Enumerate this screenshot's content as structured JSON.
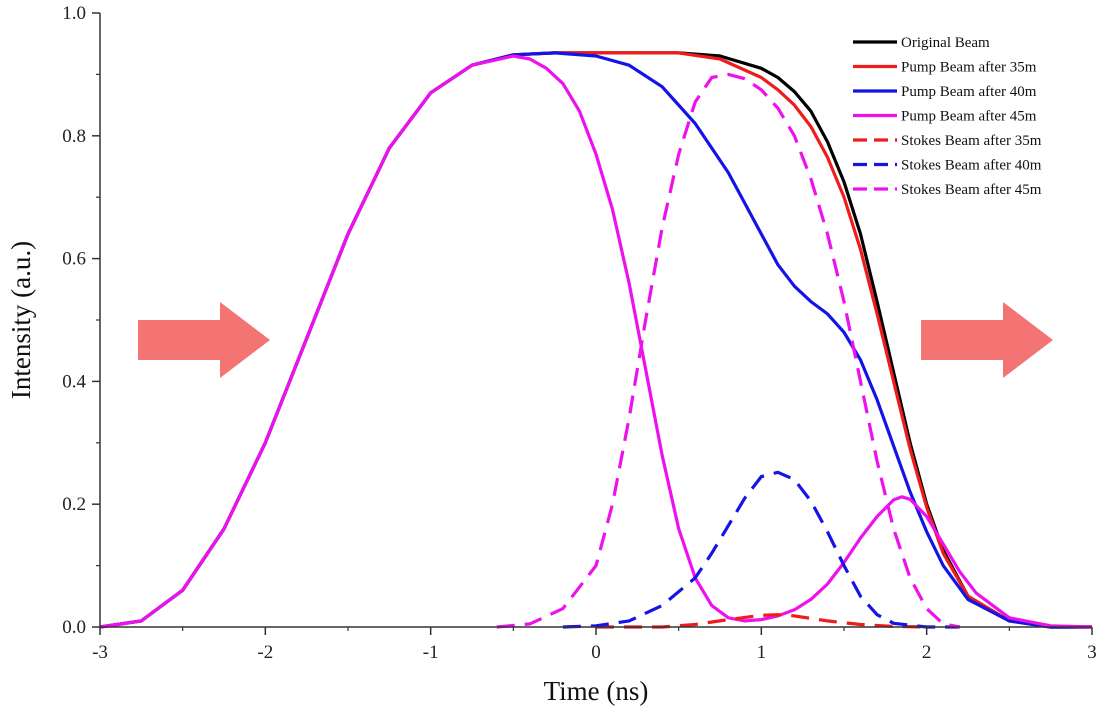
{
  "chart_data": {
    "type": "line",
    "xlabel": "Time (ns)",
    "ylabel": "Intensity (a.u.)",
    "xlim": [
      -3,
      3
    ],
    "ylim": [
      0,
      1.0
    ],
    "xticks": [
      "-3",
      "-2",
      "-1",
      "0",
      "1",
      "2",
      "3"
    ],
    "yticks": [
      "0.0",
      "0.2",
      "0.4",
      "0.6",
      "0.8",
      "1.0"
    ],
    "legend_position": "top-right",
    "grid": false,
    "series": [
      {
        "name": "Original Beam",
        "color": "#000000",
        "style": "solid",
        "points": [
          [
            -3.0,
            0.0
          ],
          [
            -2.75,
            0.01
          ],
          [
            -2.5,
            0.06
          ],
          [
            -2.25,
            0.16
          ],
          [
            -2.0,
            0.3
          ],
          [
            -1.75,
            0.47
          ],
          [
            -1.5,
            0.64
          ],
          [
            -1.25,
            0.78
          ],
          [
            -1.0,
            0.87
          ],
          [
            -0.75,
            0.915
          ],
          [
            -0.5,
            0.932
          ],
          [
            -0.25,
            0.935
          ],
          [
            0.0,
            0.935
          ],
          [
            0.25,
            0.935
          ],
          [
            0.5,
            0.935
          ],
          [
            0.75,
            0.93
          ],
          [
            1.0,
            0.91
          ],
          [
            1.1,
            0.895
          ],
          [
            1.2,
            0.872
          ],
          [
            1.3,
            0.84
          ],
          [
            1.4,
            0.79
          ],
          [
            1.5,
            0.725
          ],
          [
            1.6,
            0.64
          ],
          [
            1.7,
            0.53
          ],
          [
            1.8,
            0.415
          ],
          [
            1.9,
            0.3
          ],
          [
            2.0,
            0.2
          ],
          [
            2.1,
            0.125
          ],
          [
            2.25,
            0.05
          ],
          [
            2.5,
            0.01
          ],
          [
            2.75,
            0.0
          ],
          [
            3.0,
            0.0
          ]
        ]
      },
      {
        "name": "Pump Beam after 35m",
        "color": "#ee1c1c",
        "style": "solid",
        "points": [
          [
            -3.0,
            0.0
          ],
          [
            -2.75,
            0.01
          ],
          [
            -2.5,
            0.06
          ],
          [
            -2.25,
            0.16
          ],
          [
            -2.0,
            0.3
          ],
          [
            -1.75,
            0.47
          ],
          [
            -1.5,
            0.64
          ],
          [
            -1.25,
            0.78
          ],
          [
            -1.0,
            0.87
          ],
          [
            -0.75,
            0.915
          ],
          [
            -0.5,
            0.932
          ],
          [
            -0.25,
            0.935
          ],
          [
            0.0,
            0.935
          ],
          [
            0.25,
            0.935
          ],
          [
            0.5,
            0.935
          ],
          [
            0.75,
            0.925
          ],
          [
            1.0,
            0.895
          ],
          [
            1.1,
            0.875
          ],
          [
            1.2,
            0.85
          ],
          [
            1.3,
            0.815
          ],
          [
            1.4,
            0.765
          ],
          [
            1.5,
            0.7
          ],
          [
            1.6,
            0.615
          ],
          [
            1.7,
            0.51
          ],
          [
            1.8,
            0.4
          ],
          [
            1.9,
            0.29
          ],
          [
            2.0,
            0.195
          ],
          [
            2.1,
            0.12
          ],
          [
            2.25,
            0.05
          ],
          [
            2.5,
            0.01
          ],
          [
            2.75,
            0.0
          ],
          [
            3.0,
            0.0
          ]
        ]
      },
      {
        "name": "Pump Beam after 40m",
        "color": "#1414e6",
        "style": "solid",
        "points": [
          [
            -3.0,
            0.0
          ],
          [
            -2.75,
            0.01
          ],
          [
            -2.5,
            0.06
          ],
          [
            -2.25,
            0.16
          ],
          [
            -2.0,
            0.3
          ],
          [
            -1.75,
            0.47
          ],
          [
            -1.5,
            0.64
          ],
          [
            -1.25,
            0.78
          ],
          [
            -1.0,
            0.87
          ],
          [
            -0.75,
            0.915
          ],
          [
            -0.5,
            0.932
          ],
          [
            -0.25,
            0.935
          ],
          [
            0.0,
            0.93
          ],
          [
            0.2,
            0.915
          ],
          [
            0.4,
            0.88
          ],
          [
            0.6,
            0.82
          ],
          [
            0.8,
            0.74
          ],
          [
            0.9,
            0.69
          ],
          [
            1.0,
            0.64
          ],
          [
            1.1,
            0.59
          ],
          [
            1.2,
            0.555
          ],
          [
            1.3,
            0.53
          ],
          [
            1.4,
            0.51
          ],
          [
            1.5,
            0.48
          ],
          [
            1.6,
            0.435
          ],
          [
            1.7,
            0.37
          ],
          [
            1.8,
            0.295
          ],
          [
            1.9,
            0.22
          ],
          [
            2.0,
            0.155
          ],
          [
            2.1,
            0.1
          ],
          [
            2.25,
            0.045
          ],
          [
            2.5,
            0.01
          ],
          [
            2.75,
            0.0
          ],
          [
            3.0,
            0.0
          ]
        ]
      },
      {
        "name": "Pump Beam after 45m",
        "color": "#ee11ee",
        "style": "solid",
        "points": [
          [
            -3.0,
            0.0
          ],
          [
            -2.75,
            0.01
          ],
          [
            -2.5,
            0.06
          ],
          [
            -2.25,
            0.16
          ],
          [
            -2.0,
            0.3
          ],
          [
            -1.75,
            0.47
          ],
          [
            -1.5,
            0.64
          ],
          [
            -1.25,
            0.78
          ],
          [
            -1.0,
            0.87
          ],
          [
            -0.75,
            0.915
          ],
          [
            -0.5,
            0.93
          ],
          [
            -0.4,
            0.925
          ],
          [
            -0.3,
            0.91
          ],
          [
            -0.2,
            0.885
          ],
          [
            -0.1,
            0.84
          ],
          [
            0.0,
            0.77
          ],
          [
            0.1,
            0.68
          ],
          [
            0.2,
            0.56
          ],
          [
            0.3,
            0.42
          ],
          [
            0.4,
            0.28
          ],
          [
            0.5,
            0.16
          ],
          [
            0.6,
            0.08
          ],
          [
            0.7,
            0.035
          ],
          [
            0.8,
            0.015
          ],
          [
            0.9,
            0.01
          ],
          [
            1.0,
            0.012
          ],
          [
            1.1,
            0.018
          ],
          [
            1.2,
            0.028
          ],
          [
            1.3,
            0.045
          ],
          [
            1.4,
            0.07
          ],
          [
            1.5,
            0.105
          ],
          [
            1.6,
            0.145
          ],
          [
            1.7,
            0.18
          ],
          [
            1.8,
            0.207
          ],
          [
            1.85,
            0.212
          ],
          [
            1.9,
            0.208
          ],
          [
            2.0,
            0.18
          ],
          [
            2.1,
            0.135
          ],
          [
            2.2,
            0.09
          ],
          [
            2.3,
            0.055
          ],
          [
            2.5,
            0.015
          ],
          [
            2.75,
            0.002
          ],
          [
            3.0,
            0.0
          ]
        ]
      },
      {
        "name": "Stokes Beam after 35m",
        "color": "#ee1c1c",
        "style": "dashed",
        "points": [
          [
            0.0,
            0.0
          ],
          [
            0.4,
            0.0
          ],
          [
            0.6,
            0.004
          ],
          [
            0.8,
            0.012
          ],
          [
            1.0,
            0.019
          ],
          [
            1.1,
            0.02
          ],
          [
            1.2,
            0.018
          ],
          [
            1.4,
            0.01
          ],
          [
            1.6,
            0.004
          ],
          [
            1.8,
            0.001
          ],
          [
            2.0,
            0.0
          ]
        ]
      },
      {
        "name": "Stokes Beam after 40m",
        "color": "#1414e6",
        "style": "dashed",
        "points": [
          [
            -0.2,
            0.0
          ],
          [
            0.0,
            0.002
          ],
          [
            0.2,
            0.01
          ],
          [
            0.4,
            0.035
          ],
          [
            0.6,
            0.08
          ],
          [
            0.7,
            0.12
          ],
          [
            0.8,
            0.165
          ],
          [
            0.9,
            0.21
          ],
          [
            1.0,
            0.245
          ],
          [
            1.1,
            0.252
          ],
          [
            1.2,
            0.24
          ],
          [
            1.3,
            0.205
          ],
          [
            1.4,
            0.155
          ],
          [
            1.5,
            0.1
          ],
          [
            1.6,
            0.05
          ],
          [
            1.7,
            0.02
          ],
          [
            1.8,
            0.006
          ],
          [
            2.0,
            0.0
          ],
          [
            2.2,
            0.0
          ]
        ]
      },
      {
        "name": "Stokes Beam after 45m",
        "color": "#ee11ee",
        "style": "dashed",
        "points": [
          [
            -0.6,
            0.0
          ],
          [
            -0.4,
            0.005
          ],
          [
            -0.2,
            0.03
          ],
          [
            0.0,
            0.1
          ],
          [
            0.1,
            0.2
          ],
          [
            0.2,
            0.34
          ],
          [
            0.3,
            0.5
          ],
          [
            0.4,
            0.65
          ],
          [
            0.5,
            0.77
          ],
          [
            0.6,
            0.855
          ],
          [
            0.7,
            0.895
          ],
          [
            0.8,
            0.9
          ],
          [
            0.9,
            0.893
          ],
          [
            1.0,
            0.875
          ],
          [
            1.1,
            0.845
          ],
          [
            1.2,
            0.8
          ],
          [
            1.3,
            0.73
          ],
          [
            1.4,
            0.64
          ],
          [
            1.5,
            0.53
          ],
          [
            1.6,
            0.4
          ],
          [
            1.7,
            0.27
          ],
          [
            1.8,
            0.16
          ],
          [
            1.9,
            0.08
          ],
          [
            2.0,
            0.03
          ],
          [
            2.1,
            0.005
          ],
          [
            2.2,
            0.0
          ]
        ]
      }
    ],
    "annotations": [
      {
        "type": "arrow",
        "direction": "right",
        "color": "#f47373",
        "position": "left-middle"
      },
      {
        "type": "arrow",
        "direction": "right",
        "color": "#f47373",
        "position": "right-middle"
      }
    ]
  }
}
